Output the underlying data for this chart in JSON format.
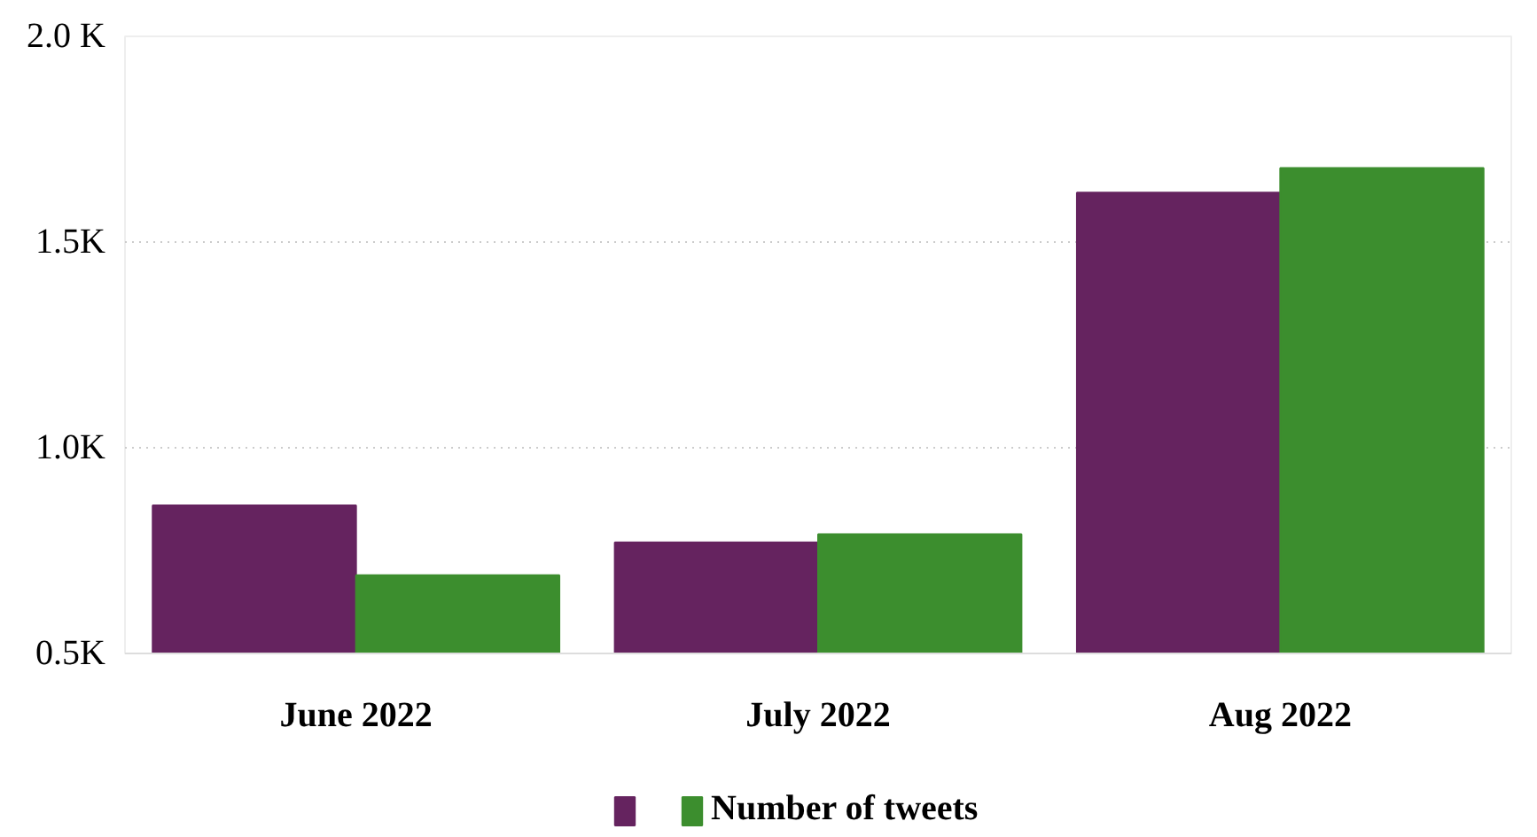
{
  "chart_data": {
    "type": "bar",
    "categories": [
      "June 2022",
      "July 2022",
      "Aug 2022"
    ],
    "series": [
      {
        "color": "#65235f",
        "values": [
          860,
          770,
          1620
        ]
      },
      {
        "name": "Number of tweets",
        "color": "#3c8e2e",
        "values": [
          690,
          790,
          1680
        ]
      }
    ],
    "ylim": [
      500,
      2000
    ],
    "yticks": [
      {
        "value": 500,
        "label": "0.5K"
      },
      {
        "value": 1000,
        "label": "1.0K"
      },
      {
        "value": 1500,
        "label": "1.5K"
      },
      {
        "value": 2000,
        "label": "2.0 K"
      }
    ],
    "grid": "y",
    "legend": "bottom"
  }
}
